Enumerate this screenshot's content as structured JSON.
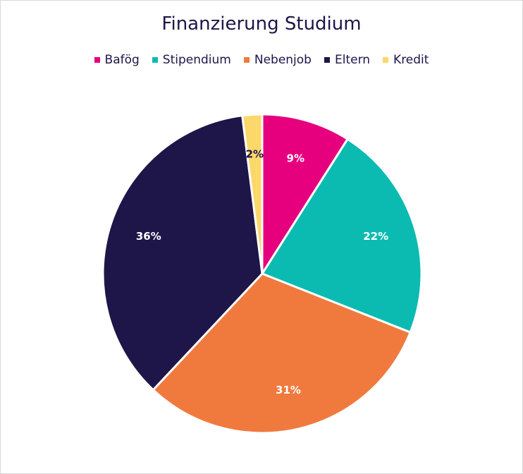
{
  "chart_data": {
    "type": "pie",
    "title": "Finanzierung Studium",
    "legend_position": "top",
    "slices": [
      {
        "name": "Bafög",
        "value": 9,
        "label": "9%",
        "color": "#e6007e",
        "label_color": "#ffffff"
      },
      {
        "name": "Stipendium",
        "value": 22,
        "label": "22%",
        "color": "#0bbbb1",
        "label_color": "#ffffff"
      },
      {
        "name": "Nebenjob",
        "value": 31,
        "label": "31%",
        "color": "#f07a3e",
        "label_color": "#ffffff"
      },
      {
        "name": "Eltern",
        "value": 36,
        "label": "36%",
        "color": "#1e1548",
        "label_color": "#ffffff"
      },
      {
        "name": "Kredit",
        "value": 2,
        "label": "2%",
        "color": "#fcd86a",
        "label_color": "#1e1548"
      }
    ]
  }
}
